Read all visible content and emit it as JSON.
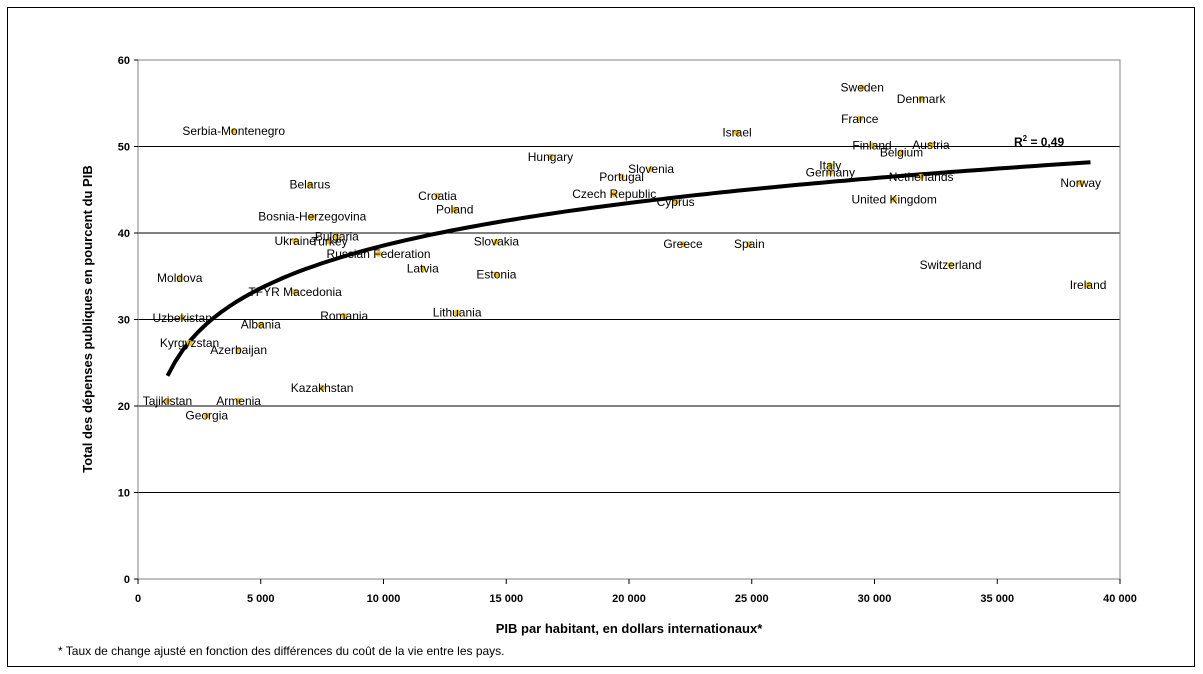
{
  "chart_data": {
    "type": "scatter",
    "xlabel": "PIB par habitant, en dollars internationaux*",
    "ylabel": "Total des dépenses publiques en pourcent du PIB",
    "xlim": [
      0,
      40000
    ],
    "ylim": [
      0,
      60
    ],
    "xticks": [
      0,
      5000,
      10000,
      15000,
      20000,
      25000,
      30000,
      35000,
      40000
    ],
    "xtick_labels": [
      "0",
      "5 000",
      "10 000",
      "15 000",
      "20 000",
      "25 000",
      "30 000",
      "35 000",
      "40 000"
    ],
    "yticks": [
      0,
      10,
      20,
      30,
      40,
      50,
      60
    ],
    "ytick_labels": [
      "0",
      "10",
      "20",
      "30",
      "40",
      "50",
      "60"
    ],
    "grid": "horizontal",
    "point_color": "#f5c400",
    "trendline": {
      "type": "logarithmic",
      "r2_label": "R",
      "r2_sup": "2",
      "r2_value": " = 0,49",
      "x_range": [
        1200,
        38800
      ]
    },
    "points": [
      {
        "label": "Sweden",
        "x": 29500,
        "y": 56.8
      },
      {
        "label": "Denmark",
        "x": 31900,
        "y": 55.5
      },
      {
        "label": "France",
        "x": 29400,
        "y": 53.2
      },
      {
        "label": "Israel",
        "x": 24400,
        "y": 51.6
      },
      {
        "label": "Serbia-Montenegro",
        "x": 3900,
        "y": 51.8
      },
      {
        "label": "Austria",
        "x": 32300,
        "y": 50.2
      },
      {
        "label": "Finland",
        "x": 29900,
        "y": 50.1
      },
      {
        "label": "Italy",
        "x": 28200,
        "y": 47.8
      },
      {
        "label": "Belgium",
        "x": 31100,
        "y": 49.3
      },
      {
        "label": "Hungary",
        "x": 16800,
        "y": 48.8
      },
      {
        "label": "Slovenia",
        "x": 20900,
        "y": 47.4
      },
      {
        "label": "Portugal",
        "x": 19700,
        "y": 46.5
      },
      {
        "label": "Germany",
        "x": 28200,
        "y": 47.0
      },
      {
        "label": "Netherlands",
        "x": 31900,
        "y": 46.5
      },
      {
        "label": "Norway",
        "x": 38400,
        "y": 45.8
      },
      {
        "label": "Belarus",
        "x": 7000,
        "y": 45.6
      },
      {
        "label": "Croatia",
        "x": 12200,
        "y": 44.3
      },
      {
        "label": "Czech Republic",
        "x": 19400,
        "y": 44.5
      },
      {
        "label": "Cyprus",
        "x": 21900,
        "y": 43.6
      },
      {
        "label": "United Kingdom",
        "x": 30800,
        "y": 43.9
      },
      {
        "label": "Poland",
        "x": 12900,
        "y": 42.7
      },
      {
        "label": "Bosnia-Herzegovina",
        "x": 7100,
        "y": 41.9
      },
      {
        "label": "Bulgaria",
        "x": 8100,
        "y": 39.6
      },
      {
        "label": "Ukraine",
        "x": 6400,
        "y": 39.1
      },
      {
        "label": "Turkey",
        "x": 7800,
        "y": 39.0
      },
      {
        "label": "Slovakia",
        "x": 14600,
        "y": 39.0
      },
      {
        "label": "Greece",
        "x": 22200,
        "y": 38.7
      },
      {
        "label": "Spain",
        "x": 24900,
        "y": 38.7
      },
      {
        "label": "Russian Federation",
        "x": 9800,
        "y": 37.6
      },
      {
        "label": "Switzerland",
        "x": 33100,
        "y": 36.3
      },
      {
        "label": "Latvia",
        "x": 11600,
        "y": 35.9
      },
      {
        "label": "Estonia",
        "x": 14600,
        "y": 35.2
      },
      {
        "label": "Moldova",
        "x": 1700,
        "y": 34.8
      },
      {
        "label": "Ireland",
        "x": 38700,
        "y": 34.0
      },
      {
        "label": "TFYR Macedonia",
        "x": 6400,
        "y": 33.2
      },
      {
        "label": "Lithuania",
        "x": 13000,
        "y": 30.8
      },
      {
        "label": "Romania",
        "x": 8400,
        "y": 30.4
      },
      {
        "label": "Uzbekistan",
        "x": 1800,
        "y": 30.2
      },
      {
        "label": "Albania",
        "x": 5000,
        "y": 29.4
      },
      {
        "label": "Kyrgyzstan",
        "x": 2100,
        "y": 27.3
      },
      {
        "label": "Azerbaijan",
        "x": 4100,
        "y": 26.5
      },
      {
        "label": "Kazakhstan",
        "x": 7500,
        "y": 22.1
      },
      {
        "label": "Tajikistan",
        "x": 1200,
        "y": 20.6
      },
      {
        "label": "Armenia",
        "x": 4100,
        "y": 20.6
      },
      {
        "label": "Georgia",
        "x": 2800,
        "y": 18.9
      }
    ]
  },
  "footnote": "* Taux de change ajusté en fonction des différences du coût de la vie entre les pays."
}
